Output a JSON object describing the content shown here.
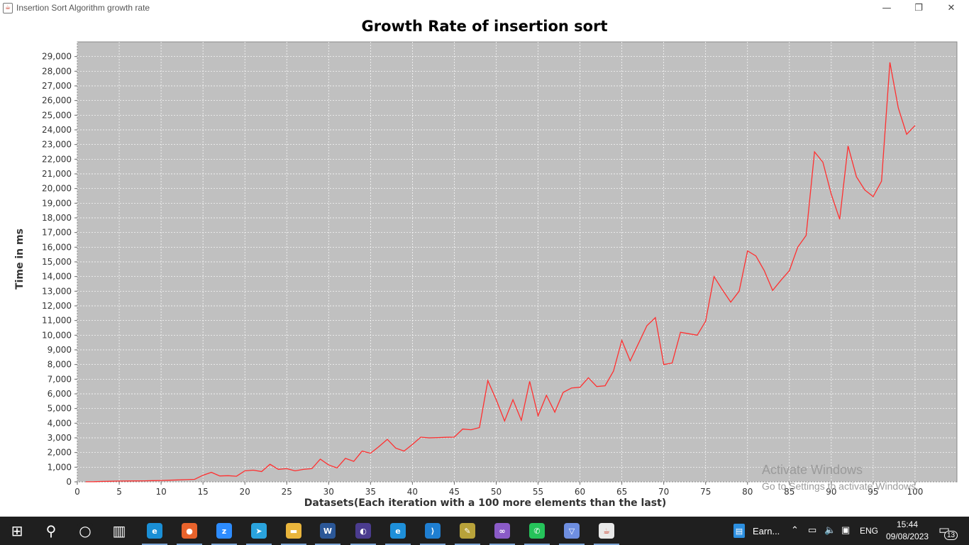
{
  "window": {
    "title": "Insertion Sort Algorithm growth rate",
    "minimize": "—",
    "restore": "❐",
    "close": "✕"
  },
  "watermark": {
    "line1": "Activate Windows",
    "line2": "Go to Settings to activate Windows."
  },
  "taskbar": {
    "items": [
      {
        "name": "windows-start-icon",
        "glyph": "⊞",
        "color": "#1f1f1f"
      },
      {
        "name": "search-icon",
        "glyph": "⚲",
        "color": "#1f1f1f"
      },
      {
        "name": "cortana-icon",
        "glyph": "○",
        "color": "#1f1f1f"
      },
      {
        "name": "task-view-icon",
        "glyph": "▥",
        "color": "#1f1f1f"
      },
      {
        "name": "edge-icon",
        "glyph": "e",
        "color": "#1a8fd6"
      },
      {
        "name": "firefox-icon",
        "glyph": "●",
        "color": "#e8632c"
      },
      {
        "name": "zoom-icon",
        "glyph": "z",
        "color": "#2d8cff"
      },
      {
        "name": "telegram-icon",
        "glyph": "➤",
        "color": "#2aa3dd"
      },
      {
        "name": "file-explorer-icon",
        "glyph": "▬",
        "color": "#e9b53c"
      },
      {
        "name": "word-icon",
        "glyph": "W",
        "color": "#2b5797"
      },
      {
        "name": "eclipse-icon",
        "glyph": "◐",
        "color": "#4b3c8f"
      },
      {
        "name": "internet-explorer-icon",
        "glyph": "e",
        "color": "#1e8fd9"
      },
      {
        "name": "vscode-icon",
        "glyph": "⟩",
        "color": "#1f7fd2"
      },
      {
        "name": "tools-icon",
        "glyph": "✎",
        "color": "#b8a23a"
      },
      {
        "name": "visual-studio-icon",
        "glyph": "∞",
        "color": "#8a5bc7"
      },
      {
        "name": "whatsapp-icon",
        "glyph": "✆",
        "color": "#25c35a"
      },
      {
        "name": "vpn-icon",
        "glyph": "▽",
        "color": "#6e8ee0"
      },
      {
        "name": "java-icon",
        "glyph": "☕",
        "color": "#e9e9e9"
      }
    ],
    "earn_label": "Earn...",
    "language": "ENG",
    "time": "15:44",
    "date": "09/08/2023",
    "notifications": "13"
  },
  "colors": {
    "plot_bg": "#c0c0c0",
    "grid": "#ffffff",
    "line": "#ff3030",
    "taskbar": "#1f1f1f"
  },
  "chart_data": {
    "type": "line",
    "title": "Growth Rate of insertion sort",
    "xlabel": "Datasets(Each iteration with a 100 more elements than the last)",
    "ylabel": "Time in ms",
    "xlim": [
      0,
      105
    ],
    "ylim": [
      0,
      30000
    ],
    "xticks": [
      0,
      5,
      10,
      15,
      20,
      25,
      30,
      35,
      40,
      45,
      50,
      55,
      60,
      65,
      70,
      75,
      80,
      85,
      90,
      95,
      100
    ],
    "yticks": [
      0,
      1000,
      2000,
      3000,
      4000,
      5000,
      6000,
      7000,
      8000,
      9000,
      10000,
      11000,
      12000,
      13000,
      14000,
      15000,
      16000,
      17000,
      18000,
      19000,
      20000,
      21000,
      22000,
      23000,
      24000,
      25000,
      26000,
      27000,
      28000,
      29000
    ],
    "grid": true,
    "series": [
      {
        "x": [
          1,
          2,
          3,
          4,
          5,
          6,
          7,
          8,
          9,
          10,
          11,
          12,
          13,
          14,
          15,
          16,
          17,
          18,
          19,
          20,
          21,
          22,
          23,
          24,
          25,
          26,
          27,
          28,
          29,
          30,
          31,
          32,
          33,
          34,
          35,
          36,
          37,
          38,
          39,
          40,
          41,
          42,
          43,
          44,
          45,
          46,
          47,
          48,
          49,
          50,
          51,
          52,
          53,
          54,
          55,
          56,
          57,
          58,
          59,
          60,
          61,
          62,
          63,
          64,
          65,
          66,
          67,
          68,
          69,
          70,
          71,
          72,
          73,
          74,
          75,
          76,
          77,
          78,
          79,
          80,
          81,
          82,
          83,
          84,
          85,
          86,
          87,
          88,
          89,
          90,
          91,
          92,
          93,
          94,
          95,
          96,
          97,
          98,
          99,
          100
        ],
        "values": [
          5,
          10,
          30,
          40,
          55,
          60,
          65,
          70,
          80,
          90,
          110,
          130,
          150,
          170,
          450,
          650,
          400,
          420,
          380,
          750,
          800,
          700,
          1200,
          850,
          900,
          750,
          850,
          900,
          1550,
          1150,
          950,
          1600,
          1400,
          2100,
          1950,
          2400,
          2900,
          2300,
          2100,
          2550,
          3050,
          3000,
          3020,
          3040,
          3050,
          3600,
          3550,
          3700,
          6900,
          5600,
          4150,
          5600,
          4200,
          6850,
          4500,
          5900,
          4750,
          6100,
          6400,
          6450,
          7100,
          6500,
          6550,
          7550,
          9650,
          8250,
          9450,
          10650,
          11200,
          8000,
          8100,
          10200,
          10100,
          10000,
          10950,
          14000,
          13100,
          12250,
          13000,
          15750,
          15400,
          14400,
          13050,
          13750,
          14400,
          16000,
          16800,
          22500,
          21800,
          19600,
          17900,
          22900,
          20800,
          19900,
          19450,
          20500,
          28600,
          25500,
          23700,
          24300
        ]
      }
    ]
  }
}
